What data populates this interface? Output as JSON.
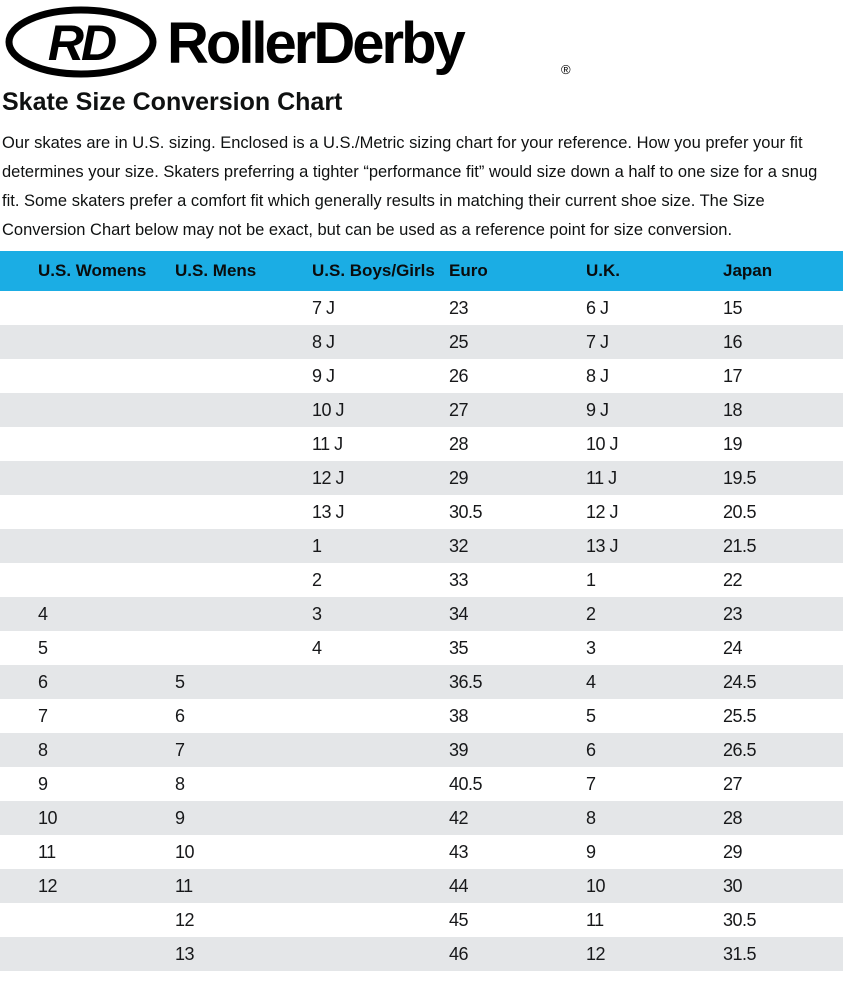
{
  "brand": {
    "monogram": "RD",
    "name": "RollerDerby",
    "registered_mark": "®"
  },
  "title": "Skate Size Conversion Chart",
  "intro": "Our skates are in U.S. sizing. Enclosed is a U.S./Metric sizing chart for your reference. How you prefer your fit determines your size. Skaters preferring a tighter “performance fit” would size down a half to one size for a snug fit. Some skaters prefer a comfort fit which generally results in matching their current shoe size. The Size Conversion Chart below may not be exact, but can be used as a reference point for size conversion.",
  "table": {
    "columns": [
      "U.S. Womens",
      "U.S. Mens",
      "U.S. Boys/Girls",
      "Euro",
      "U.K.",
      "Japan"
    ],
    "rows": [
      [
        "",
        "",
        "7 J",
        "23",
        "6 J",
        "15"
      ],
      [
        "",
        "",
        "8 J",
        "25",
        "7 J",
        "16"
      ],
      [
        "",
        "",
        "9 J",
        "26",
        "8 J",
        "17"
      ],
      [
        "",
        "",
        "10 J",
        "27",
        "9 J",
        "18"
      ],
      [
        "",
        "",
        "11 J",
        "28",
        "10 J",
        "19"
      ],
      [
        "",
        "",
        "12 J",
        "29",
        "11 J",
        "19.5"
      ],
      [
        "",
        "",
        "13 J",
        "30.5",
        "12 J",
        "20.5"
      ],
      [
        "",
        "",
        "1",
        "32",
        "13 J",
        "21.5"
      ],
      [
        "",
        "",
        "2",
        "33",
        "1",
        "22"
      ],
      [
        "4",
        "",
        "3",
        "34",
        "2",
        "23"
      ],
      [
        "5",
        "",
        "4",
        "35",
        "3",
        "24"
      ],
      [
        "6",
        "5",
        "",
        "36.5",
        "4",
        "24.5"
      ],
      [
        "7",
        "6",
        "",
        "38",
        "5",
        "25.5"
      ],
      [
        "8",
        "7",
        "",
        "39",
        "6",
        "26.5"
      ],
      [
        "9",
        "8",
        "",
        "40.5",
        "7",
        "27"
      ],
      [
        "10",
        "9",
        "",
        "42",
        "8",
        "28"
      ],
      [
        "11",
        "10",
        "",
        "43",
        "9",
        "29"
      ],
      [
        "12",
        "11",
        "",
        "44",
        "10",
        "30"
      ],
      [
        "",
        "12",
        "",
        "45",
        "11",
        "30.5"
      ],
      [
        "",
        "13",
        "",
        "46",
        "12",
        "31.5"
      ]
    ]
  },
  "colors": {
    "header_bg": "#1bade4",
    "row_alt_bg": "#e4e6e8",
    "brand_black": "#000000"
  }
}
